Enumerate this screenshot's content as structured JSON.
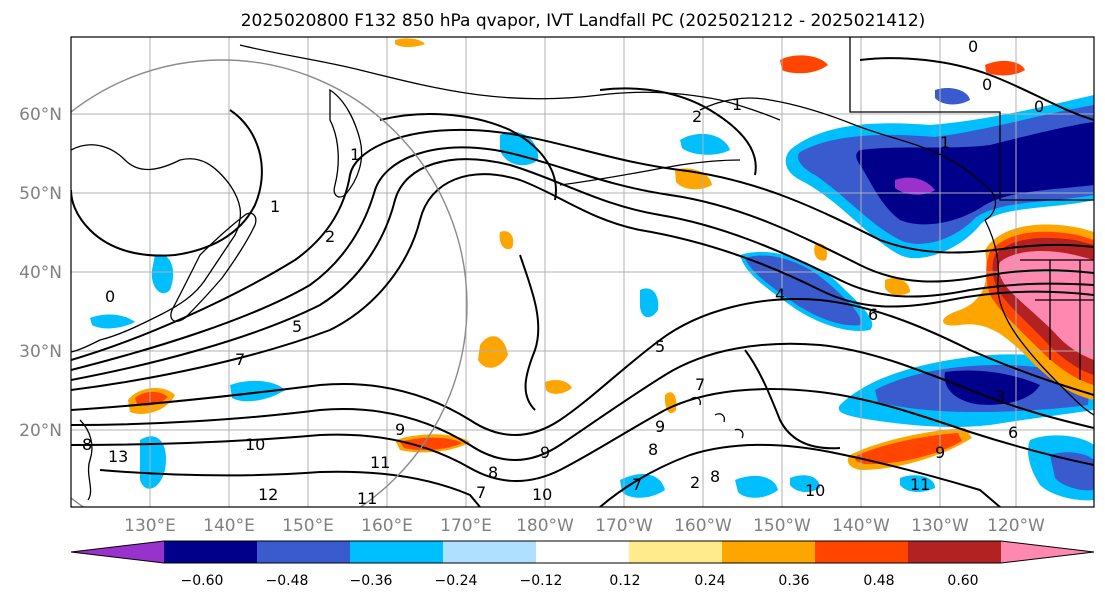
{
  "title": "2025020800 F132 850 hPa qvapor, IVT Landfall PC (2025021212 - 2025021412)",
  "latitude_ticks": [
    "60°N",
    "50°N",
    "40°N",
    "30°N",
    "20°N"
  ],
  "longitude_ticks": [
    "130°E",
    "140°E",
    "150°E",
    "160°E",
    "170°E",
    "180°W",
    "170°W",
    "160°W",
    "150°W",
    "140°W",
    "130°W",
    "120°W"
  ],
  "colorbar": {
    "colors": [
      "#9932cc",
      "#00008b",
      "#3a5bcd",
      "#00bfff",
      "#b0e0ff",
      "#ffffff",
      "#ffea8c",
      "#ffa500",
      "#ff4500",
      "#b22222",
      "#ff88b0"
    ],
    "tick_labels": [
      "−0.60",
      "−0.48",
      "−0.36",
      "−0.24",
      "−0.12",
      "0.12",
      "0.24",
      "0.36",
      "0.48",
      "0.60"
    ]
  },
  "contour_labels": [
    "1",
    "2",
    "2",
    "5",
    "4",
    "5",
    "7",
    "8",
    "9",
    "10",
    "11",
    "12",
    "13",
    "8",
    "9",
    "10",
    "11",
    "7",
    "8",
    "6",
    "9",
    "11",
    "10",
    "8",
    "7",
    "1",
    "1",
    "0",
    "0",
    "0",
    "0",
    "9",
    "6",
    "1",
    "2",
    "3",
    "7"
  ],
  "shading_colors": {
    "purple": "#9932cc",
    "navy": "#00008b",
    "royal_blue": "#3a5bcd",
    "sky_blue": "#00bfff",
    "light_blue": "#b0e0ff",
    "yellow": "#ffea8c",
    "orange": "#ffa500",
    "red_orange": "#ff4500",
    "dark_red": "#b22222",
    "pink": "#ff88b0"
  }
}
